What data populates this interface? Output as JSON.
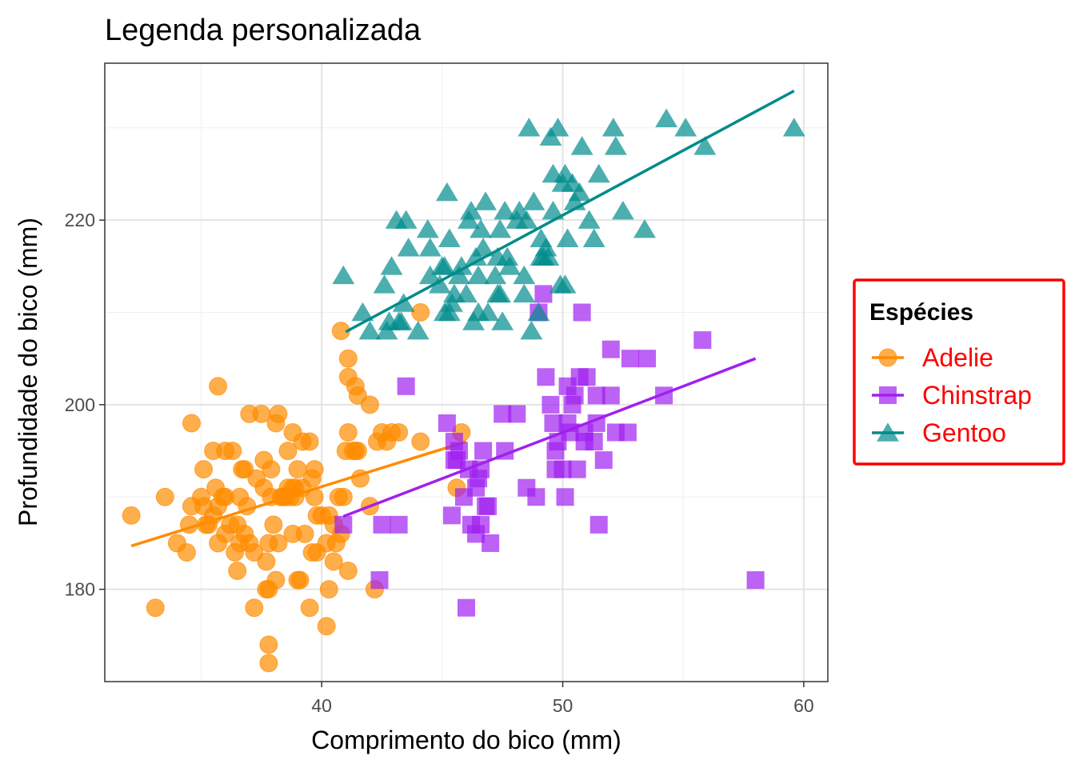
{
  "chart_data": {
    "type": "scatter",
    "title": "Legenda personalizada",
    "xlabel": "Comprimento do bico (mm)",
    "ylabel": "Profundidade do bico (mm)",
    "xlim": [
      31.0,
      61.0
    ],
    "ylim": [
      170.0,
      237.0
    ],
    "x_ticks": [
      40,
      50,
      60
    ],
    "y_ticks": [
      180,
      200,
      220
    ],
    "x_minor_ticks": [
      35,
      45,
      55
    ],
    "y_minor_ticks": [
      170,
      190,
      210,
      230
    ],
    "grid": true,
    "legend": {
      "title": "Espécies",
      "position": "right",
      "border_color": "#ff0000",
      "label_color": "#ff0000"
    },
    "series": [
      {
        "name": "Adelie",
        "shape": "circle",
        "color": "#ff8c00",
        "trend": {
          "x": [
            32.1,
            46.0
          ],
          "y": [
            184.7,
            196.0
          ]
        },
        "points": [
          [
            32.1,
            188
          ],
          [
            33.1,
            178
          ],
          [
            33.5,
            190
          ],
          [
            34.0,
            185
          ],
          [
            34.4,
            184
          ],
          [
            34.5,
            187
          ],
          [
            34.6,
            189
          ],
          [
            34.6,
            198
          ],
          [
            35.0,
            190
          ],
          [
            35.1,
            193
          ],
          [
            35.2,
            187
          ],
          [
            35.3,
            187
          ],
          [
            35.5,
            195
          ],
          [
            35.6,
            191
          ],
          [
            35.7,
            185
          ],
          [
            35.7,
            202
          ],
          [
            35.9,
            190
          ],
          [
            36.0,
            195
          ],
          [
            36.0,
            190
          ],
          [
            36.2,
            187
          ],
          [
            36.3,
            195
          ],
          [
            36.4,
            184
          ],
          [
            36.5,
            182
          ],
          [
            36.6,
            185
          ],
          [
            36.7,
            193
          ],
          [
            36.8,
            193
          ],
          [
            36.9,
            189
          ],
          [
            37.0,
            185
          ],
          [
            37.2,
            178
          ],
          [
            37.3,
            192
          ],
          [
            37.5,
            199
          ],
          [
            37.6,
            194
          ],
          [
            37.7,
            180
          ],
          [
            37.8,
            174
          ],
          [
            37.8,
            180
          ],
          [
            37.8,
            172
          ],
          [
            37.9,
            193
          ],
          [
            38.0,
            187
          ],
          [
            38.1,
            181
          ],
          [
            38.2,
            185
          ],
          [
            38.3,
            190
          ],
          [
            38.5,
            190
          ],
          [
            38.6,
            195
          ],
          [
            38.8,
            191
          ],
          [
            38.9,
            190
          ],
          [
            39.0,
            181
          ],
          [
            39.1,
            181
          ],
          [
            39.2,
            196
          ],
          [
            39.3,
            186
          ],
          [
            39.5,
            178
          ],
          [
            39.6,
            184
          ],
          [
            39.7,
            193
          ],
          [
            39.8,
            184
          ],
          [
            40.0,
            188
          ],
          [
            40.2,
            176
          ],
          [
            40.3,
            180
          ],
          [
            40.5,
            183
          ],
          [
            40.6,
            185
          ],
          [
            40.8,
            186
          ],
          [
            40.9,
            190
          ],
          [
            41.0,
            195
          ],
          [
            41.1,
            197
          ],
          [
            41.3,
            195
          ],
          [
            41.4,
            195
          ],
          [
            41.5,
            201
          ],
          [
            41.6,
            192
          ],
          [
            42.0,
            200
          ],
          [
            42.2,
            180
          ],
          [
            42.3,
            196
          ],
          [
            42.5,
            197
          ],
          [
            42.7,
            196
          ],
          [
            42.9,
            197
          ],
          [
            43.2,
            197
          ],
          [
            44.1,
            196
          ],
          [
            44.1,
            210
          ],
          [
            45.6,
            191
          ],
          [
            45.8,
            197
          ],
          [
            40.8,
            208
          ],
          [
            41.1,
            205
          ],
          [
            41.1,
            203
          ],
          [
            38.1,
            198
          ],
          [
            37.2,
            184
          ],
          [
            38.7,
            190
          ],
          [
            39.0,
            193
          ],
          [
            40.3,
            188
          ],
          [
            36.5,
            187
          ],
          [
            37.0,
            199
          ],
          [
            39.5,
            196
          ],
          [
            38.9,
            191
          ],
          [
            37.9,
            190
          ],
          [
            40.7,
            190
          ],
          [
            38.8,
            186
          ],
          [
            42.0,
            189
          ],
          [
            35.5,
            188
          ],
          [
            38.6,
            191
          ],
          [
            39.7,
            190
          ],
          [
            37.8,
            185
          ],
          [
            40.5,
            187
          ],
          [
            36.8,
            186
          ],
          [
            41.4,
            202
          ],
          [
            35.1,
            189
          ],
          [
            39.2,
            191
          ],
          [
            36.0,
            186
          ],
          [
            41.5,
            195
          ],
          [
            38.2,
            199
          ],
          [
            38.8,
            197
          ],
          [
            35.7,
            189
          ],
          [
            41.1,
            182
          ],
          [
            40.2,
            185
          ],
          [
            37.6,
            191
          ],
          [
            39.8,
            188
          ],
          [
            36.6,
            190
          ],
          [
            38.4,
            190
          ],
          [
            37.7,
            183
          ],
          [
            39.6,
            192
          ]
        ]
      },
      {
        "name": "Chinstrap",
        "shape": "square",
        "color": "#a020f0",
        "trend": {
          "x": [
            40.9,
            58.0
          ],
          "y": [
            187.9,
            205.0
          ]
        },
        "points": [
          [
            40.9,
            187
          ],
          [
            42.4,
            181
          ],
          [
            42.5,
            187
          ],
          [
            43.2,
            187
          ],
          [
            43.5,
            202
          ],
          [
            45.2,
            198
          ],
          [
            45.4,
            188
          ],
          [
            45.5,
            194
          ],
          [
            45.6,
            194
          ],
          [
            45.7,
            195
          ],
          [
            45.9,
            190
          ],
          [
            46.0,
            178
          ],
          [
            46.1,
            193
          ],
          [
            46.2,
            187
          ],
          [
            46.4,
            191
          ],
          [
            46.5,
            192
          ],
          [
            46.6,
            193
          ],
          [
            46.7,
            195
          ],
          [
            46.8,
            189
          ],
          [
            46.9,
            189
          ],
          [
            47.0,
            185
          ],
          [
            47.5,
            199
          ],
          [
            47.6,
            195
          ],
          [
            48.1,
            199
          ],
          [
            48.5,
            191
          ],
          [
            49.0,
            210
          ],
          [
            49.2,
            212
          ],
          [
            49.3,
            203
          ],
          [
            49.5,
            200
          ],
          [
            49.6,
            198
          ],
          [
            49.7,
            195
          ],
          [
            50.0,
            193
          ],
          [
            50.1,
            190
          ],
          [
            50.2,
            198
          ],
          [
            50.3,
            197
          ],
          [
            50.5,
            201
          ],
          [
            50.6,
            193
          ],
          [
            50.8,
            210
          ],
          [
            50.9,
            196
          ],
          [
            51.0,
            203
          ],
          [
            51.3,
            196
          ],
          [
            51.4,
            201
          ],
          [
            51.5,
            187
          ],
          [
            51.7,
            194
          ],
          [
            52.0,
            206
          ],
          [
            52.2,
            197
          ],
          [
            52.7,
            197
          ],
          [
            52.8,
            205
          ],
          [
            53.5,
            205
          ],
          [
            54.2,
            201
          ],
          [
            55.8,
            207
          ],
          [
            58.0,
            181
          ],
          [
            46.4,
            186
          ],
          [
            50.9,
            197
          ],
          [
            49.8,
            196
          ],
          [
            52.0,
            201
          ],
          [
            49.7,
            193
          ],
          [
            50.7,
            203
          ],
          [
            48.9,
            190
          ],
          [
            51.4,
            198
          ],
          [
            50.4,
            200
          ],
          [
            45.5,
            196
          ],
          [
            50.2,
            202
          ],
          [
            46.6,
            187
          ]
        ]
      },
      {
        "name": "Gentoo",
        "shape": "triangle",
        "color": "#008b8b",
        "trend": {
          "x": [
            41.0,
            59.6
          ],
          "y": [
            207.9,
            234.0
          ]
        },
        "points": [
          [
            40.9,
            214
          ],
          [
            41.7,
            210
          ],
          [
            42.0,
            208
          ],
          [
            42.6,
            213
          ],
          [
            42.7,
            208
          ],
          [
            42.8,
            209
          ],
          [
            42.9,
            215
          ],
          [
            43.1,
            220
          ],
          [
            43.2,
            209
          ],
          [
            43.3,
            209
          ],
          [
            43.5,
            220
          ],
          [
            43.6,
            217
          ],
          [
            44.0,
            208
          ],
          [
            44.4,
            219
          ],
          [
            44.5,
            214
          ],
          [
            44.9,
            213
          ],
          [
            45.0,
            215
          ],
          [
            45.1,
            215
          ],
          [
            45.2,
            223
          ],
          [
            45.3,
            210
          ],
          [
            45.4,
            211
          ],
          [
            45.5,
            212
          ],
          [
            45.7,
            214
          ],
          [
            45.8,
            215
          ],
          [
            46.1,
            220
          ],
          [
            46.2,
            221
          ],
          [
            46.3,
            209
          ],
          [
            46.4,
            216
          ],
          [
            46.5,
            210
          ],
          [
            46.6,
            219
          ],
          [
            46.7,
            217
          ],
          [
            46.8,
            222
          ],
          [
            46.9,
            210
          ],
          [
            47.2,
            214
          ],
          [
            47.3,
            216
          ],
          [
            47.4,
            212
          ],
          [
            47.5,
            209
          ],
          [
            47.7,
            216
          ],
          [
            47.8,
            215
          ],
          [
            48.1,
            220
          ],
          [
            48.2,
            221
          ],
          [
            48.4,
            212
          ],
          [
            48.5,
            220
          ],
          [
            48.6,
            230
          ],
          [
            48.7,
            208
          ],
          [
            48.8,
            222
          ],
          [
            49.0,
            210
          ],
          [
            49.1,
            216
          ],
          [
            49.2,
            216
          ],
          [
            49.3,
            217
          ],
          [
            49.4,
            216
          ],
          [
            49.5,
            229
          ],
          [
            49.6,
            225
          ],
          [
            49.8,
            230
          ],
          [
            49.9,
            213
          ],
          [
            50.0,
            224
          ],
          [
            50.1,
            225
          ],
          [
            50.2,
            218
          ],
          [
            50.4,
            224
          ],
          [
            50.5,
            222
          ],
          [
            50.7,
            223
          ],
          [
            50.8,
            228
          ],
          [
            51.1,
            220
          ],
          [
            51.3,
            218
          ],
          [
            51.5,
            225
          ],
          [
            52.1,
            230
          ],
          [
            52.2,
            228
          ],
          [
            52.5,
            221
          ],
          [
            53.4,
            219
          ],
          [
            54.3,
            231
          ],
          [
            55.1,
            230
          ],
          [
            55.9,
            228
          ],
          [
            59.6,
            230
          ],
          [
            46.0,
            212
          ],
          [
            45.3,
            218
          ],
          [
            47.6,
            221
          ],
          [
            48.4,
            214
          ],
          [
            49.1,
            218
          ],
          [
            46.5,
            214
          ],
          [
            44.5,
            217
          ],
          [
            47.4,
            219
          ],
          [
            50.1,
            213
          ],
          [
            45.1,
            210
          ],
          [
            43.4,
            211
          ],
          [
            47.3,
            212
          ],
          [
            49.6,
            221
          ]
        ]
      }
    ]
  }
}
